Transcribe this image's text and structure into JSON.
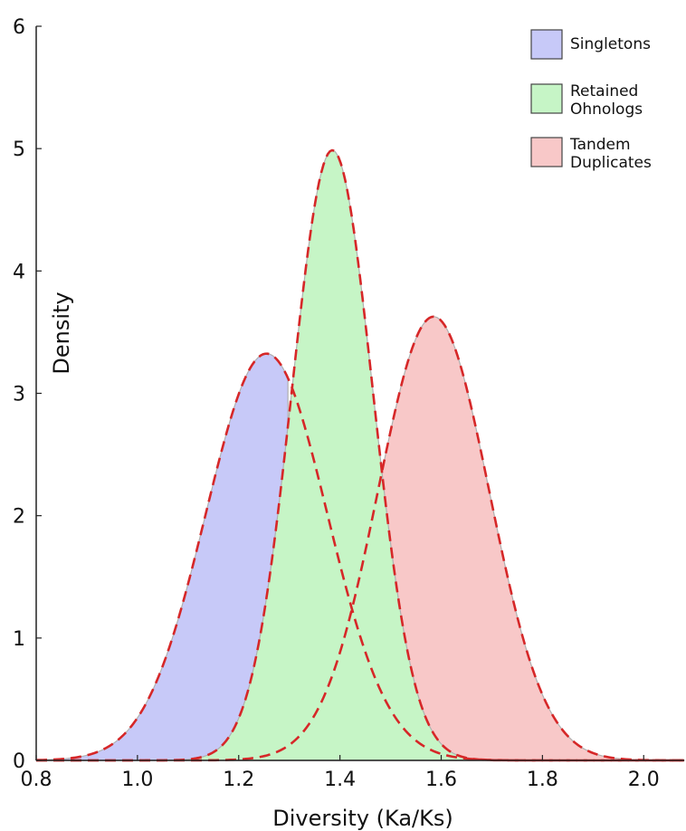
{
  "chart_data": {
    "type": "area",
    "title": "",
    "xlabel": "Diversity (Ka/Ks)",
    "ylabel": "Density",
    "xlim": [
      0.8,
      2.08
    ],
    "ylim": [
      0,
      6
    ],
    "x_ticks": [
      "0.8",
      "1.0",
      "1.2",
      "1.4",
      "1.6",
      "1.8",
      "2.0"
    ],
    "y_ticks": [
      "0",
      "1",
      "2",
      "3",
      "4",
      "5",
      "6"
    ],
    "grid": false,
    "legend_position": "top-right",
    "fit_line_color": "#d62728",
    "series": [
      {
        "name": "Singletons",
        "color": "#c7c9f8",
        "fit": {
          "mean": 1.255,
          "std": 0.12
        },
        "x": [
          0.84,
          0.88,
          0.92,
          0.96,
          1.0,
          1.04,
          1.08,
          1.12,
          1.16,
          1.2,
          1.24,
          1.26,
          1.28,
          1.3
        ],
        "values": [
          0.01,
          0.03,
          0.08,
          0.2,
          0.42,
          0.8,
          1.28,
          1.85,
          2.5,
          3.05,
          3.3,
          3.38,
          3.35,
          3.25
        ]
      },
      {
        "name": "Retained\nOhnologs",
        "color": "#c6f5c6",
        "fit": {
          "mean": 1.385,
          "std": 0.08
        },
        "x": [
          1.16,
          1.2,
          1.24,
          1.28,
          1.32,
          1.36,
          1.38,
          1.4,
          1.42,
          1.44,
          1.46,
          1.48
        ],
        "values": [
          0.04,
          0.2,
          0.62,
          1.55,
          2.9,
          4.35,
          5.02,
          4.9,
          4.35,
          3.5,
          2.6,
          1.95
        ]
      },
      {
        "name": "Tandem\nDuplicates",
        "color": "#f8c8c8",
        "fit": {
          "mean": 1.585,
          "std": 0.11
        },
        "x": [
          1.2,
          1.3,
          1.4,
          1.45,
          1.5,
          1.55,
          1.58,
          1.6,
          1.65,
          1.7,
          1.8,
          1.9,
          2.0
        ],
        "values": [
          0.01,
          0.12,
          0.75,
          1.45,
          2.4,
          3.3,
          3.62,
          3.6,
          3.2,
          2.5,
          0.95,
          0.22,
          0.03
        ]
      }
    ]
  }
}
